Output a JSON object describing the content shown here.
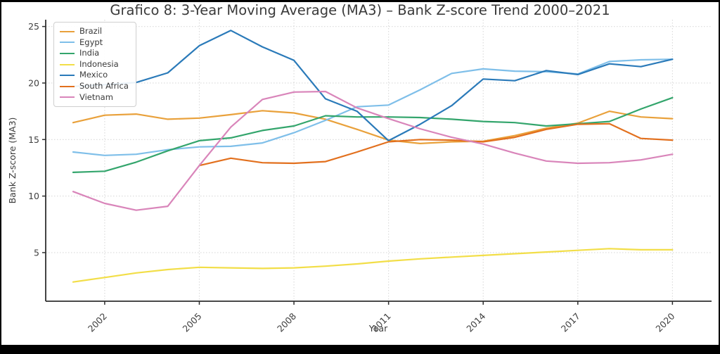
{
  "title": "Grafico 8: 3-Year Moving Average (MA3) – Bank Z-score Trend 2000–2021",
  "chart_data": {
    "type": "line",
    "title": "Grafico 8: 3-Year Moving Average (MA3) – Bank Z-score Trend 2000–2021",
    "xlabel": "Year",
    "ylabel": "Bank Z-score (MA3)",
    "x": [
      2001,
      2002,
      2003,
      2004,
      2005,
      2006,
      2007,
      2008,
      2009,
      2010,
      2011,
      2012,
      2013,
      2014,
      2015,
      2016,
      2017,
      2018,
      2019,
      2020
    ],
    "xticks": [
      2002,
      2005,
      2008,
      2011,
      2014,
      2017,
      2020
    ],
    "yticks": [
      5,
      10,
      15,
      20,
      25
    ],
    "xlim": [
      2000.13,
      2021.24
    ],
    "ylim": [
      0.7,
      25.6
    ],
    "grid": "dotted",
    "legend_position": "upper-left",
    "series": [
      {
        "name": "Brazil",
        "color": "#e9a13b",
        "values": [
          16.5,
          17.15,
          17.25,
          16.8,
          16.9,
          17.2,
          17.55,
          17.35,
          16.8,
          15.9,
          14.95,
          14.65,
          14.8,
          14.85,
          15.35,
          16.0,
          16.45,
          17.5,
          17.0,
          16.85
        ]
      },
      {
        "name": "Egypt",
        "color": "#7fbfe9",
        "values": [
          13.9,
          13.6,
          13.7,
          14.1,
          14.35,
          14.4,
          14.7,
          15.6,
          16.7,
          17.9,
          18.05,
          19.4,
          20.85,
          21.25,
          21.05,
          21.0,
          20.8,
          21.9,
          22.05,
          22.1
        ]
      },
      {
        "name": "India",
        "color": "#33a56c",
        "values": [
          12.1,
          12.2,
          13.0,
          14.0,
          14.9,
          15.15,
          15.8,
          16.2,
          17.1,
          17.0,
          17.0,
          16.95,
          16.8,
          16.6,
          16.5,
          16.2,
          16.4,
          16.6,
          17.7,
          18.7
        ]
      },
      {
        "name": "Indonesia",
        "color": "#f2de48",
        "values": [
          2.4,
          2.8,
          3.2,
          3.5,
          3.7,
          3.65,
          3.6,
          3.65,
          3.8,
          4.0,
          4.25,
          4.45,
          4.6,
          4.75,
          4.9,
          5.05,
          5.2,
          5.35,
          5.25,
          5.25
        ]
      },
      {
        "name": "Mexico",
        "color": "#2a7ab9",
        "values": [
          19.7,
          19.85,
          20.05,
          20.9,
          23.3,
          24.65,
          23.2,
          22.0,
          18.6,
          17.5,
          14.9,
          16.35,
          18.0,
          20.35,
          20.2,
          21.1,
          20.75,
          21.7,
          21.45,
          22.1
        ]
      },
      {
        "name": "South Africa",
        "color": "#e2701e",
        "values": [
          null,
          null,
          null,
          null,
          12.7,
          13.35,
          12.95,
          12.9,
          13.05,
          13.9,
          14.8,
          15.0,
          14.95,
          14.8,
          15.2,
          15.9,
          16.35,
          16.4,
          15.1,
          14.95
        ]
      },
      {
        "name": "Vietnam",
        "color": "#d985ba",
        "values": [
          10.4,
          9.35,
          8.75,
          9.1,
          12.7,
          16.1,
          18.55,
          19.2,
          19.25,
          17.8,
          16.85,
          15.95,
          15.2,
          14.6,
          13.8,
          13.1,
          12.9,
          12.95,
          13.2,
          13.7
        ]
      }
    ]
  },
  "colors": {
    "grid": "#d9d9d9",
    "spine": "#2f2f2f",
    "title_text": "#3a3a3a",
    "tick_text": "#404040",
    "frame": "#000000"
  }
}
